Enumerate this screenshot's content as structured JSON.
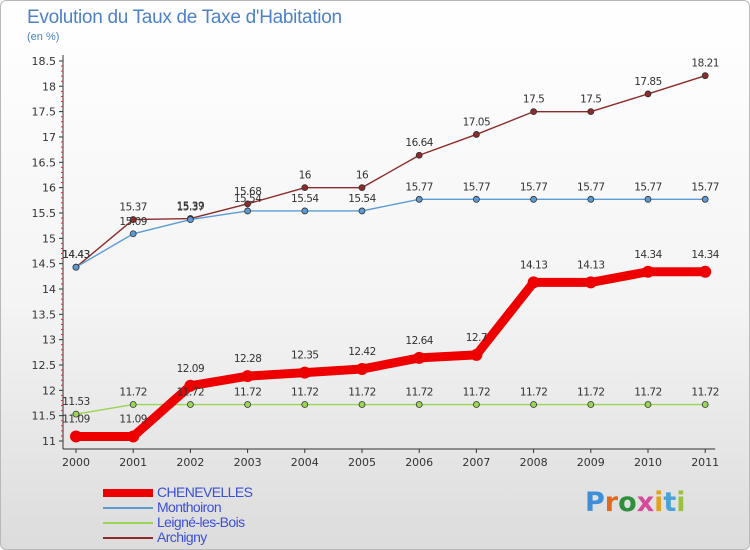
{
  "header": {
    "title": "Evolution du Taux de Taxe d'Habitation",
    "subtitle": "(en %)"
  },
  "brand": {
    "letters": [
      "P",
      "r",
      "o",
      "x",
      "i",
      "t",
      "i"
    ],
    "colors": [
      "#3f8fd6",
      "#e06b1f",
      "#2f8f3f",
      "#d64a9a",
      "#e0a21f",
      "#4aa3d6",
      "#9bc23f"
    ]
  },
  "chart_data": {
    "type": "line",
    "x": [
      "2000",
      "2001",
      "2002",
      "2003",
      "2004",
      "2005",
      "2006",
      "2007",
      "2008",
      "2009",
      "2010",
      "2011"
    ],
    "ylim": [
      11,
      18.5
    ],
    "yticks": [
      "11",
      "11.5",
      "12",
      "12.5",
      "13",
      "13.5",
      "14",
      "14.5",
      "15",
      "15.5",
      "16",
      "16.5",
      "17",
      "17.5",
      "18",
      "18.5"
    ],
    "grid": false,
    "legend_position": "bottom-left",
    "series": [
      {
        "name": "CHENEVELLES",
        "color": "#ee0000",
        "values": [
          11.09,
          11.09,
          12.09,
          12.28,
          12.35,
          12.42,
          12.64,
          12.7,
          14.13,
          14.13,
          14.34,
          14.34
        ],
        "labels": [
          "11.09",
          "11.09",
          "12.09",
          "12.28",
          "12.35",
          "12.42",
          "12.64",
          "12.7",
          "14.13",
          "14.13",
          "14.34",
          "14.34"
        ]
      },
      {
        "name": "Monthoiron",
        "color": "#5b9bd5",
        "values": [
          14.43,
          15.09,
          15.37,
          15.54,
          15.54,
          15.54,
          15.77,
          15.77,
          15.77,
          15.77,
          15.77,
          15.77
        ],
        "labels": [
          "14.43",
          "15.09",
          "15.37",
          "15.54",
          "15.54",
          "15.54",
          "15.77",
          "15.77",
          "15.77",
          "15.77",
          "15.77",
          "15.77"
        ]
      },
      {
        "name": "Leigné-les-Bois",
        "color": "#9ad655",
        "values": [
          11.53,
          11.72,
          11.72,
          11.72,
          11.72,
          11.72,
          11.72,
          11.72,
          11.72,
          11.72,
          11.72,
          11.72
        ],
        "labels": [
          "11.53",
          "11.72",
          "11.72",
          "11.72",
          "11.72",
          "11.72",
          "11.72",
          "11.72",
          "11.72",
          "11.72",
          "11.72",
          "11.72"
        ]
      },
      {
        "name": "Archigny",
        "color": "#8b2b2b",
        "values": [
          14.43,
          15.37,
          15.39,
          15.68,
          16,
          16,
          16.64,
          17.05,
          17.5,
          17.5,
          17.85,
          18.21
        ],
        "labels": [
          "14.43",
          "15.37",
          "15.39",
          "15.68",
          "16",
          "16",
          "16.64",
          "17.05",
          "17.5",
          "17.5",
          "17.85",
          "18.21"
        ]
      }
    ]
  }
}
